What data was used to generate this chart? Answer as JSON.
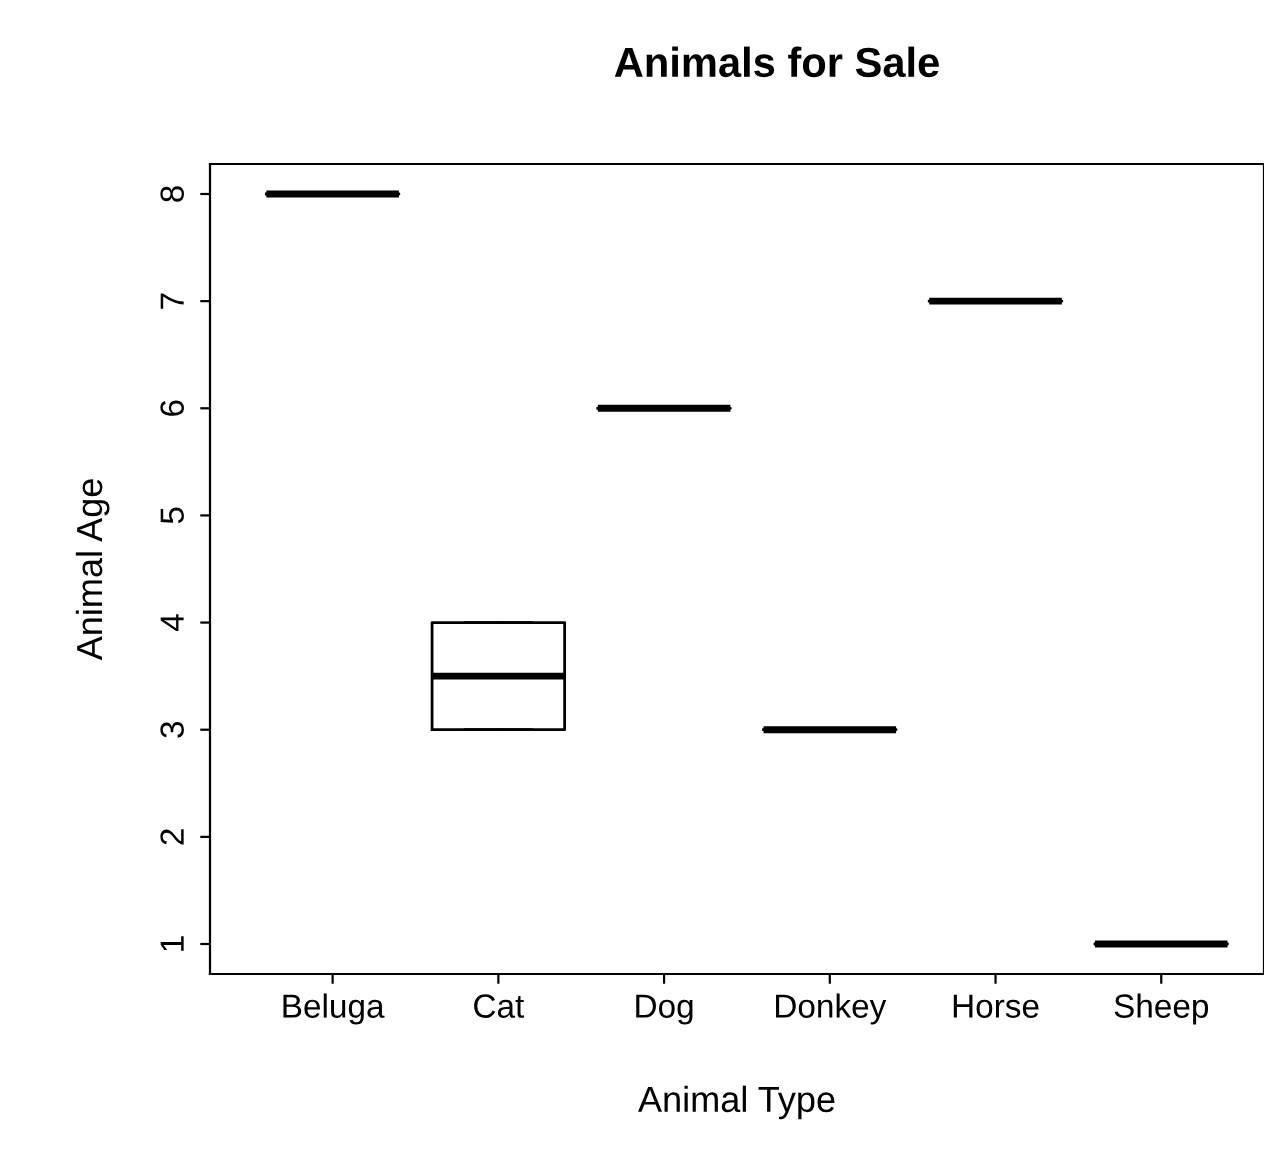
{
  "chart_data": {
    "type": "box",
    "title": "Animals for Sale",
    "xlabel": "Animal Type",
    "ylabel": "Animal Age",
    "categories": [
      "Beluga",
      "Cat",
      "Dog",
      "Donkey",
      "Horse",
      "Sheep"
    ],
    "boxes": [
      {
        "low": 8,
        "q1": 8,
        "median": 8,
        "q3": 8,
        "high": 8
      },
      {
        "low": 3,
        "q1": 3,
        "median": 3.5,
        "q3": 4,
        "high": 4
      },
      {
        "low": 6,
        "q1": 6,
        "median": 6,
        "q3": 6,
        "high": 6
      },
      {
        "low": 3,
        "q1": 3,
        "median": 3,
        "q3": 3,
        "high": 3
      },
      {
        "low": 7,
        "q1": 7,
        "median": 7,
        "q3": 7,
        "high": 7
      },
      {
        "low": 1,
        "q1": 1,
        "median": 1,
        "q3": 1,
        "high": 1
      }
    ],
    "ylim": [
      0.72,
      8.28
    ],
    "yticks": [
      1,
      2,
      3,
      4,
      5,
      6,
      7,
      8
    ],
    "grid": false,
    "legend": false
  }
}
